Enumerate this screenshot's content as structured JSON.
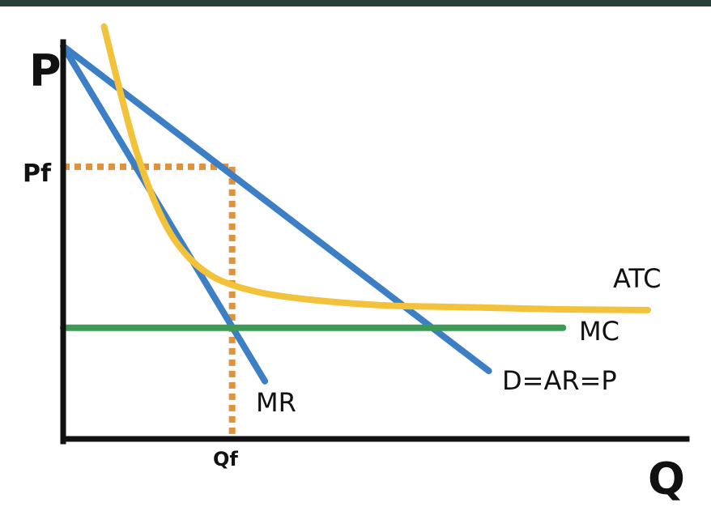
{
  "chart_data": {
    "type": "line",
    "title": "",
    "xlabel": "Q",
    "ylabel": "P",
    "xlim": [
      0,
      100
    ],
    "ylim": [
      0,
      100
    ],
    "grid": false,
    "legend": "none",
    "tick_labels": {
      "pf": "Pf",
      "qf": "Qf"
    },
    "series": [
      {
        "name": "D=AR=P",
        "kind": "line",
        "color": "#3d7fc4",
        "x": [
          0,
          72.8
        ],
        "y": [
          100,
          17.3
        ]
      },
      {
        "name": "MR",
        "kind": "line",
        "color": "#3d7fc4",
        "x": [
          0,
          34.5
        ],
        "y": [
          100,
          14.7
        ]
      },
      {
        "name": "ATC",
        "kind": "curve",
        "color": "#f2c23a",
        "x": [
          7,
          10,
          13,
          17,
          21,
          26,
          33,
          42,
          55,
          70,
          85,
          100
        ],
        "y": [
          105,
          87,
          71,
          56,
          47,
          41,
          37.5,
          35.5,
          34,
          33.5,
          33,
          32.8
        ]
      },
      {
        "name": "MC",
        "kind": "line",
        "color": "#3c9a55",
        "x": [
          0,
          85.5
        ],
        "y": [
          28.3,
          28.3
        ]
      }
    ],
    "annotations": [
      {
        "name": "price-guide",
        "style": "dotted",
        "color": "#e0913b",
        "x": [
          0,
          28.9
        ],
        "y": [
          69.3,
          69.3
        ]
      },
      {
        "name": "quantity-guide",
        "style": "dotted",
        "color": "#e0913b",
        "x": [
          28.9,
          28.9
        ],
        "y": [
          69.3,
          0
        ]
      }
    ]
  }
}
